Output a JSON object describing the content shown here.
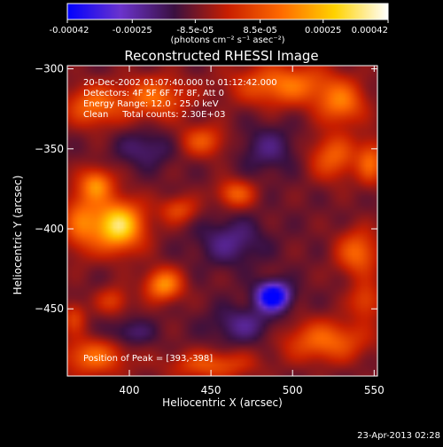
{
  "chart_data": {
    "type": "heatmap",
    "title": "Reconstructed RHESSI Image",
    "xlabel": "Heliocentric X (arcsec)",
    "ylabel": "Heliocentric Y (arcsec)",
    "xlim": [
      362,
      552
    ],
    "ylim": [
      -492,
      -298
    ],
    "x_ticks": [
      400,
      450,
      500,
      550
    ],
    "y_ticks": [
      -300,
      -350,
      -400,
      -450
    ],
    "colorbar": {
      "range": [
        -0.00042,
        0.00042
      ],
      "tick_values": [
        -0.00042,
        -0.00025,
        -8.5e-05,
        8.5e-05,
        0.00025,
        0.00042
      ],
      "tick_labels": [
        "-0.00042",
        "-0.00025",
        "-8.5e-05",
        "8.5e-05",
        "0.00025",
        "0.00042"
      ],
      "unit_label": "(photons cm⁻² s⁻¹ asec⁻²)",
      "colormap": [
        "#0000ff",
        "#6b33cc",
        "#3a1040",
        "#c81e00",
        "#ff6a00",
        "#ffd200",
        "#ffffff"
      ]
    },
    "annotations": [
      "20-Dec-2002 01:07:40.000 to 01:12:42.000",
      "Detectors: 4F 5F 6F 7F 8F, Att 0",
      "Energy Range: 12.0 - 25.0 keV",
      "Clean     Total counts: 2.30E+03"
    ],
    "peak_text": "Position of Peak = [393,-398]",
    "peak": [
      393,
      -398
    ],
    "sources": [
      {
        "x": 393,
        "y": -398,
        "amp": 0.00042,
        "sx": 11,
        "sy": 11
      },
      {
        "x": 421,
        "y": -435,
        "amp": 0.00028,
        "sx": 8,
        "sy": 7
      },
      {
        "x": 370,
        "y": -395,
        "amp": 0.0002,
        "sx": 8,
        "sy": 14
      },
      {
        "x": 380,
        "y": -372,
        "amp": 0.00025,
        "sx": 7,
        "sy": 7
      },
      {
        "x": 378,
        "y": -323,
        "amp": 0.00022,
        "sx": 12,
        "sy": 9
      },
      {
        "x": 415,
        "y": -318,
        "amp": 0.00022,
        "sx": 14,
        "sy": 9
      },
      {
        "x": 445,
        "y": -345,
        "amp": 0.00018,
        "sx": 10,
        "sy": 7
      },
      {
        "x": 495,
        "y": -310,
        "amp": 0.00024,
        "sx": 22,
        "sy": 9
      },
      {
        "x": 530,
        "y": -322,
        "amp": 0.00022,
        "sx": 10,
        "sy": 9
      },
      {
        "x": 525,
        "y": -355,
        "amp": 0.0002,
        "sx": 10,
        "sy": 10
      },
      {
        "x": 548,
        "y": -358,
        "amp": 0.0002,
        "sx": 6,
        "sy": 10
      },
      {
        "x": 465,
        "y": -378,
        "amp": 0.0002,
        "sx": 8,
        "sy": 6
      },
      {
        "x": 430,
        "y": -388,
        "amp": 0.00016,
        "sx": 8,
        "sy": 6
      },
      {
        "x": 540,
        "y": -415,
        "amp": 0.00022,
        "sx": 9,
        "sy": 10
      },
      {
        "x": 520,
        "y": -470,
        "amp": 0.00022,
        "sx": 18,
        "sy": 9
      },
      {
        "x": 545,
        "y": -445,
        "amp": 0.00016,
        "sx": 7,
        "sy": 8
      },
      {
        "x": 450,
        "y": -485,
        "amp": 0.00018,
        "sx": 18,
        "sy": 6
      },
      {
        "x": 378,
        "y": -480,
        "amp": 0.00022,
        "sx": 14,
        "sy": 8
      },
      {
        "x": 390,
        "y": -445,
        "amp": 0.00014,
        "sx": 7,
        "sy": 6
      },
      {
        "x": 366,
        "y": -455,
        "amp": 0.00014,
        "sx": 5,
        "sy": 7
      },
      {
        "x": 488,
        "y": -442,
        "amp": -0.0004,
        "sx": 7,
        "sy": 6
      },
      {
        "x": 462,
        "y": -408,
        "amp": -0.00012,
        "sx": 14,
        "sy": 10
      },
      {
        "x": 470,
        "y": -460,
        "amp": -0.00012,
        "sx": 14,
        "sy": 8
      },
      {
        "x": 410,
        "y": -350,
        "amp": -0.0001,
        "sx": 12,
        "sy": 8
      },
      {
        "x": 485,
        "y": -350,
        "amp": -0.0001,
        "sx": 12,
        "sy": 10
      },
      {
        "x": 400,
        "y": -465,
        "amp": -0.0001,
        "sx": 10,
        "sy": 6
      }
    ]
  },
  "footer": {
    "timestamp": "23-Apr-2013 02:28"
  }
}
